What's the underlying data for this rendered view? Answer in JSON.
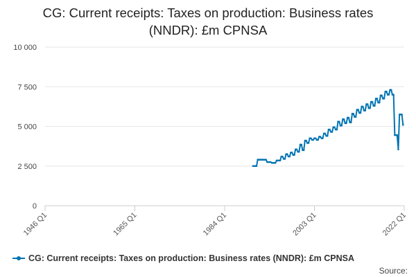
{
  "chart_data": {
    "type": "line",
    "title": "CG: Current receipts: Taxes on production: Business rates (NNDR): £m CPNSA",
    "title_lines": [
      "CG: Current receipts: Taxes on production: Business rates",
      "(NNDR): £m CPNSA"
    ],
    "xlabel": "",
    "ylabel": "",
    "ylim": [
      0,
      10000
    ],
    "y_ticks": [
      0,
      2500,
      5000,
      7500,
      10000
    ],
    "y_tick_labels": [
      "0",
      "2 500",
      "5 000",
      "7 500",
      "10 000"
    ],
    "x_range": [
      1946,
      2022
    ],
    "x_ticks": [
      1946,
      1965,
      1984,
      2003,
      2022
    ],
    "x_tick_labels": [
      "1946 Q1",
      "1965 Q1",
      "1984 Q1",
      "2003 Q1",
      "2022 Q1"
    ],
    "grid": "horizontal",
    "legend_position": "bottom-left",
    "series": [
      {
        "name": "CG: Current receipts: Taxes on production: Business rates (NNDR): £m CPNSA",
        "color": "#0073b3",
        "points": [
          [
            1990.0,
            2500
          ],
          [
            1990.25,
            2500
          ],
          [
            1990.5,
            2500
          ],
          [
            1990.75,
            2500
          ],
          [
            1991.0,
            2900
          ],
          [
            1991.25,
            2900
          ],
          [
            1991.5,
            2900
          ],
          [
            1991.75,
            2900
          ],
          [
            1992.0,
            2900
          ],
          [
            1992.25,
            2900
          ],
          [
            1992.5,
            2900
          ],
          [
            1992.75,
            2900
          ],
          [
            1993.0,
            2750
          ],
          [
            1993.25,
            2750
          ],
          [
            1993.5,
            2750
          ],
          [
            1993.75,
            2750
          ],
          [
            1994.0,
            2700
          ],
          [
            1994.25,
            2700
          ],
          [
            1994.5,
            2700
          ],
          [
            1994.75,
            2700
          ],
          [
            1995.0,
            2850
          ],
          [
            1995.25,
            2850
          ],
          [
            1995.5,
            2850
          ],
          [
            1995.75,
            2850
          ],
          [
            1996.0,
            3100
          ],
          [
            1996.25,
            3100
          ],
          [
            1996.5,
            2950
          ],
          [
            1996.75,
            2950
          ],
          [
            1997.0,
            3250
          ],
          [
            1997.25,
            3250
          ],
          [
            1997.5,
            3100
          ],
          [
            1997.75,
            3100
          ],
          [
            1998.0,
            3350
          ],
          [
            1998.25,
            3350
          ],
          [
            1998.5,
            3200
          ],
          [
            1998.75,
            3200
          ],
          [
            1999.0,
            3550
          ],
          [
            1999.25,
            3550
          ],
          [
            1999.5,
            3400
          ],
          [
            1999.75,
            3400
          ],
          [
            2000.0,
            3850
          ],
          [
            2000.25,
            3850
          ],
          [
            2000.5,
            3500
          ],
          [
            2000.75,
            3500
          ],
          [
            2001.0,
            4100
          ],
          [
            2001.25,
            4100
          ],
          [
            2001.5,
            3950
          ],
          [
            2001.75,
            3950
          ],
          [
            2002.0,
            4250
          ],
          [
            2002.25,
            4250
          ],
          [
            2002.5,
            4150
          ],
          [
            2002.75,
            4150
          ],
          [
            2003.0,
            4250
          ],
          [
            2003.25,
            4250
          ],
          [
            2003.5,
            4150
          ],
          [
            2003.75,
            4150
          ],
          [
            2004.0,
            4350
          ],
          [
            2004.25,
            4350
          ],
          [
            2004.5,
            4250
          ],
          [
            2004.75,
            4250
          ],
          [
            2005.0,
            4550
          ],
          [
            2005.25,
            4550
          ],
          [
            2005.5,
            4400
          ],
          [
            2005.75,
            4400
          ],
          [
            2006.0,
            4800
          ],
          [
            2006.25,
            4800
          ],
          [
            2006.5,
            4650
          ],
          [
            2006.75,
            4650
          ],
          [
            2007.0,
            4950
          ],
          [
            2007.25,
            4950
          ],
          [
            2007.5,
            4800
          ],
          [
            2007.75,
            4800
          ],
          [
            2008.0,
            5300
          ],
          [
            2008.25,
            5300
          ],
          [
            2008.5,
            5050
          ],
          [
            2008.75,
            5050
          ],
          [
            2009.0,
            5450
          ],
          [
            2009.25,
            5450
          ],
          [
            2009.5,
            5200
          ],
          [
            2009.75,
            5200
          ],
          [
            2010.0,
            5550
          ],
          [
            2010.25,
            5550
          ],
          [
            2010.5,
            5250
          ],
          [
            2010.75,
            5250
          ],
          [
            2011.0,
            5800
          ],
          [
            2011.25,
            5800
          ],
          [
            2011.5,
            5600
          ],
          [
            2011.75,
            5600
          ],
          [
            2012.0,
            6050
          ],
          [
            2012.25,
            6050
          ],
          [
            2012.5,
            5850
          ],
          [
            2012.75,
            5850
          ],
          [
            2013.0,
            6250
          ],
          [
            2013.25,
            6250
          ],
          [
            2013.5,
            6000
          ],
          [
            2013.75,
            6000
          ],
          [
            2014.0,
            6400
          ],
          [
            2014.25,
            6400
          ],
          [
            2014.5,
            6150
          ],
          [
            2014.75,
            6150
          ],
          [
            2015.0,
            6550
          ],
          [
            2015.25,
            6550
          ],
          [
            2015.5,
            6300
          ],
          [
            2015.75,
            6300
          ],
          [
            2016.0,
            6750
          ],
          [
            2016.25,
            6750
          ],
          [
            2016.5,
            6500
          ],
          [
            2016.75,
            6500
          ],
          [
            2017.0,
            6950
          ],
          [
            2017.25,
            6950
          ],
          [
            2017.5,
            6750
          ],
          [
            2017.75,
            6750
          ],
          [
            2018.0,
            7200
          ],
          [
            2018.25,
            7200
          ],
          [
            2018.5,
            7000
          ],
          [
            2018.75,
            7000
          ],
          [
            2019.0,
            7300
          ],
          [
            2019.25,
            7300
          ],
          [
            2019.5,
            7000
          ],
          [
            2019.75,
            7000
          ],
          [
            2020.0,
            4450
          ],
          [
            2020.25,
            4450
          ],
          [
            2020.5,
            4450
          ],
          [
            2020.75,
            3550
          ],
          [
            2021.0,
            5750
          ],
          [
            2021.25,
            5750
          ],
          [
            2021.5,
            5750
          ],
          [
            2021.75,
            5100
          ]
        ]
      }
    ]
  },
  "source_label": "Source:"
}
